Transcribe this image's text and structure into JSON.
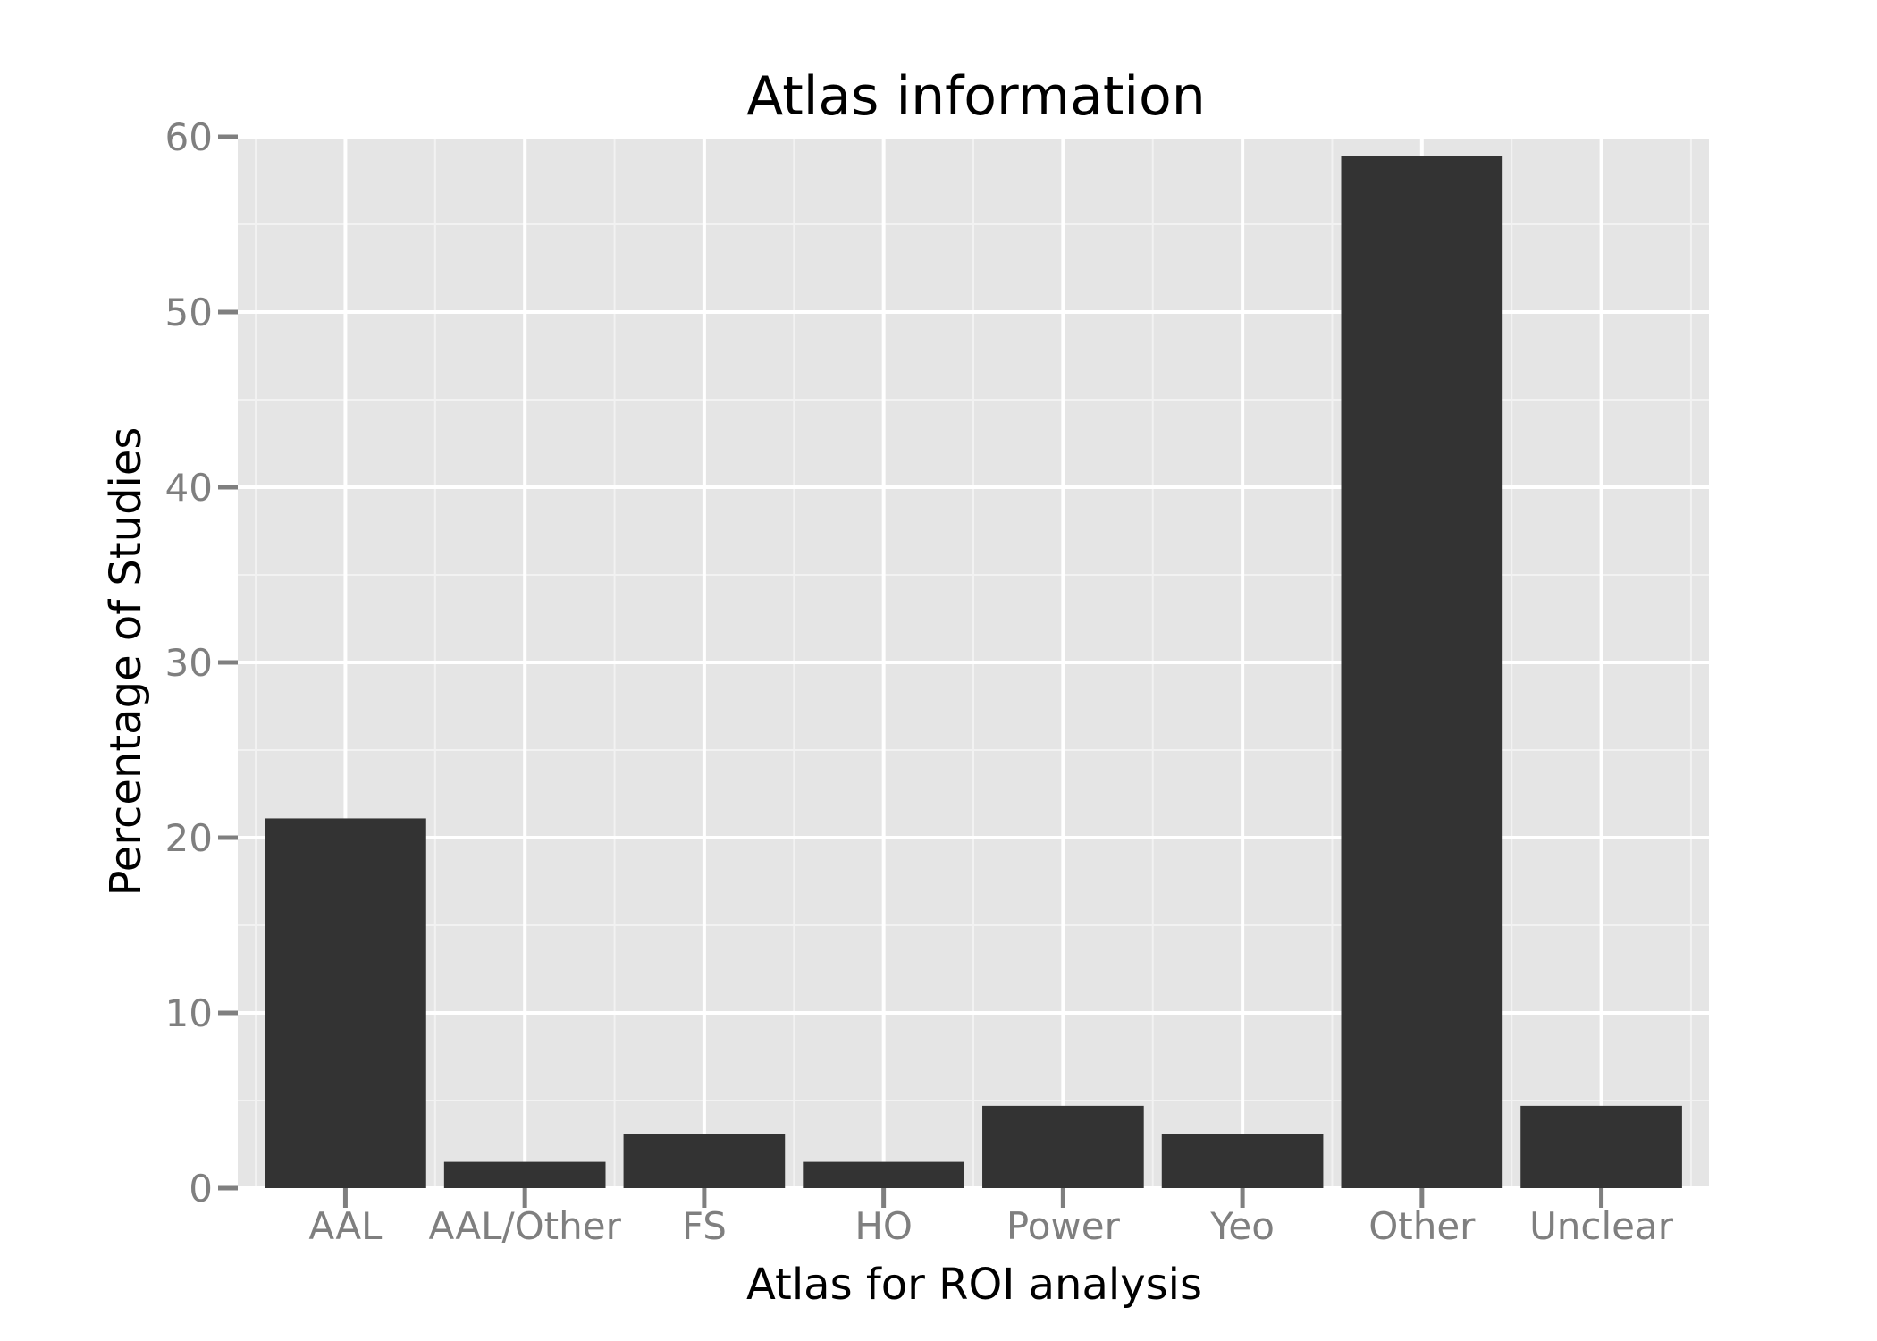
{
  "chart_data": {
    "type": "bar",
    "title": "Atlas information",
    "xlabel": "Atlas for ROI analysis",
    "ylabel": "Percentage of Studies",
    "categories": [
      "AAL",
      "AAL/Other",
      "FS",
      "HO",
      "Power",
      "Yeo",
      "Other",
      "Unclear"
    ],
    "values": [
      21.1,
      1.5,
      3.1,
      1.5,
      4.7,
      3.1,
      58.9,
      4.7
    ],
    "ylim": [
      0,
      60
    ],
    "yticks": [
      "0",
      "10",
      "20",
      "30",
      "40",
      "50",
      "60"
    ],
    "grid": true,
    "legend": "none",
    "colors": {
      "panel": "#e5e5e5",
      "grid_major": "#ffffff",
      "grid_minor": "#f2f2f2",
      "bar": "#333333",
      "tick": "#7f7f7f"
    }
  }
}
